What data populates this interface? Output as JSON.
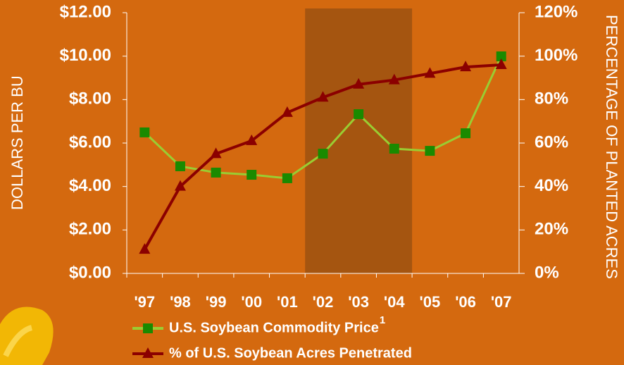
{
  "chart_data": {
    "type": "line",
    "categories": [
      "'97",
      "'98",
      "'99",
      "'00",
      "'01",
      "'02",
      "'03",
      "'04",
      "'05",
      "'06",
      "'07"
    ],
    "ylabel": "DOLLARS PER BU",
    "y2label": "PERCENTAGE OF PLANTED ACRES",
    "ylim": [
      0,
      12
    ],
    "yticks": [
      {
        "value": 0,
        "label": "$0.00"
      },
      {
        "value": 2,
        "label": "$2.00"
      },
      {
        "value": 4,
        "label": "$4.00"
      },
      {
        "value": 6,
        "label": "$6.00"
      },
      {
        "value": 8,
        "label": "$8.00"
      },
      {
        "value": 10,
        "label": "$10.00"
      },
      {
        "value": 12,
        "label": "$12.00"
      }
    ],
    "y2lim": [
      0,
      120
    ],
    "y2ticks": [
      {
        "value": 0,
        "label": "0%"
      },
      {
        "value": 20,
        "label": "20%"
      },
      {
        "value": 40,
        "label": "40%"
      },
      {
        "value": 60,
        "label": "60%"
      },
      {
        "value": 80,
        "label": "80%"
      },
      {
        "value": 100,
        "label": "100%"
      },
      {
        "value": 120,
        "label": "120%"
      }
    ],
    "series": [
      {
        "name": "U.S. Soybean Commodity Price",
        "footnote": "1",
        "color": "#9acd32",
        "marker_color": "#1a8a00",
        "marker": "square",
        "values": [
          6.49,
          4.93,
          4.64,
          4.54,
          4.38,
          5.51,
          7.33,
          5.74,
          5.64,
          6.45,
          9.99
        ]
      },
      {
        "name": "% of U.S. Soybean Acres Penetrated",
        "color": "#8b0000",
        "marker_color": "#8b0000",
        "marker": "triangle",
        "axis": "y2",
        "values": [
          11,
          40,
          55,
          61,
          74,
          81,
          87,
          89,
          92,
          95,
          96
        ]
      }
    ]
  }
}
